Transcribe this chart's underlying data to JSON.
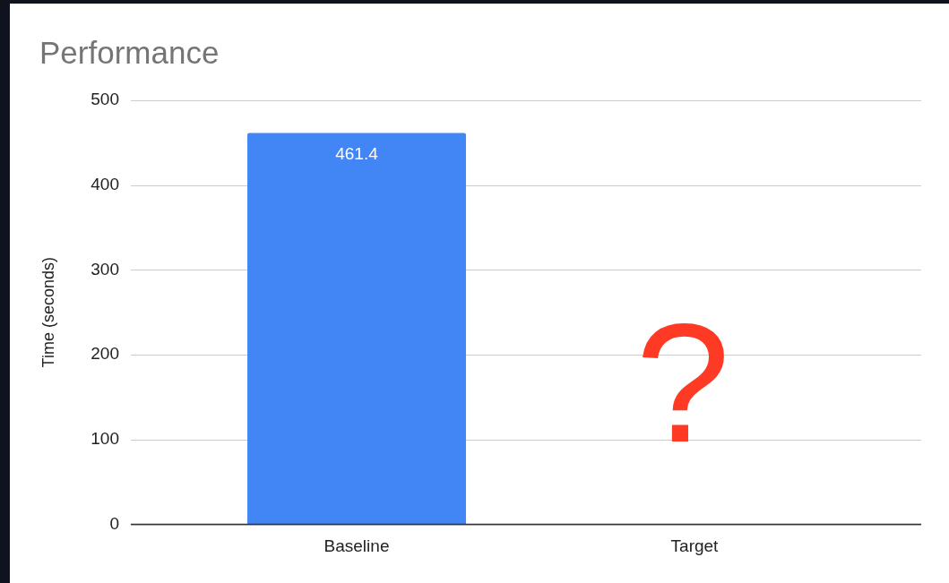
{
  "chart_data": {
    "type": "bar",
    "title": "Performance",
    "ylabel": "Time (seconds)",
    "categories": [
      "Baseline",
      "Target"
    ],
    "values": [
      461.4,
      null
    ],
    "color": "#4285f4",
    "ylim": [
      0,
      500
    ],
    "yticks": [
      0,
      100,
      200,
      300,
      400,
      500
    ],
    "grid": "y",
    "data_labels": true,
    "annotations": [
      "?"
    ]
  }
}
